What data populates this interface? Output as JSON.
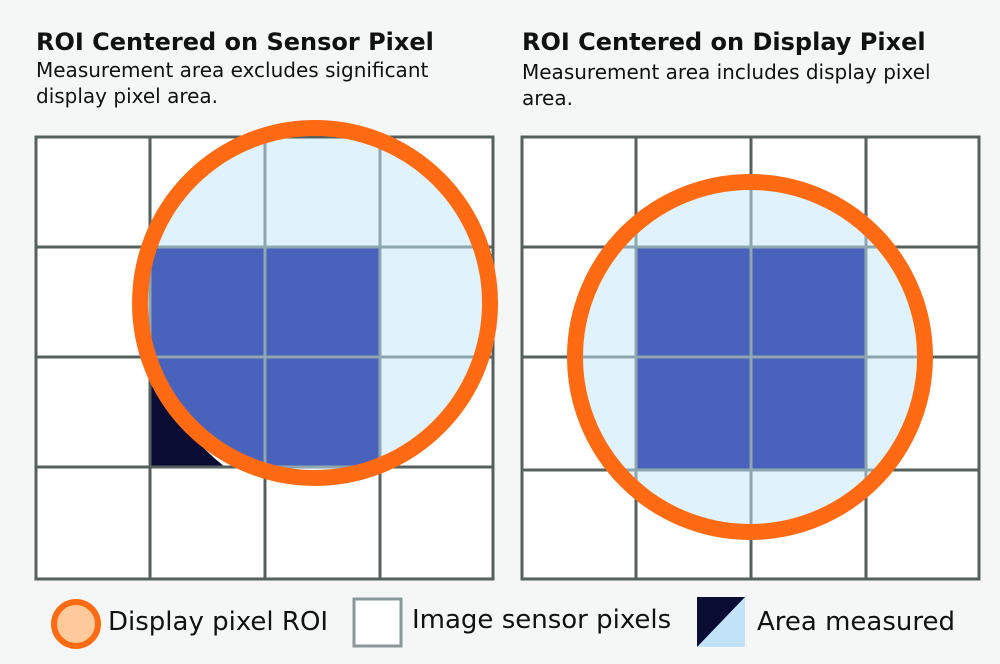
{
  "left_panel": {
    "title": "ROI Centered on Sensor Pixel",
    "subtitle": "Measurement area excludes significant display pixel area."
  },
  "right_panel": {
    "title": "ROI Centered on Display Pixel",
    "subtitle": "Measurement area includes display pixel area."
  },
  "legend": {
    "roi_label": "Display pixel ROI",
    "sensor_label": "Image sensor pixels",
    "area_label": "Area measured"
  },
  "colors": {
    "roi_ring": "#ff6a13",
    "roi_fill": "#ffc99b",
    "grid_line": "#56605e",
    "inner_grid_line": "#8ea6ae",
    "pixel_white": "#ffffff",
    "roi_interior": "#e0f3fc",
    "measured_blue": "#4962bc",
    "display_pixel_dark": "#0a0c33"
  }
}
